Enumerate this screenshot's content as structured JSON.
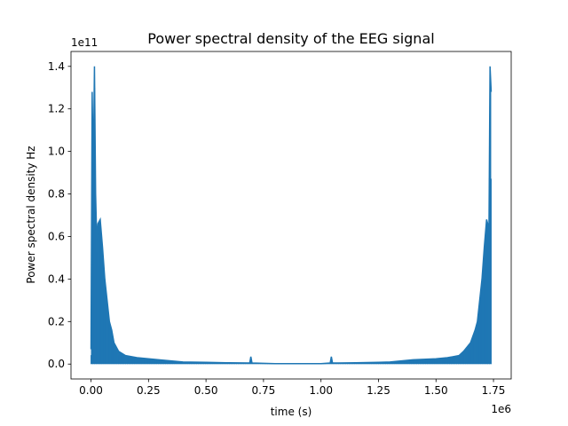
{
  "chart_data": {
    "type": "line",
    "title": "Power spectral density of the EEG signal",
    "xlabel": "time (s)",
    "ylabel": "Power spectral density Hz",
    "x_offset_text": "1e6",
    "y_offset_text": "1e11",
    "xlim": [
      -0.087,
      1.827
    ],
    "ylim": [
      -0.07,
      1.47
    ],
    "x_ticks": [
      0.0,
      0.25,
      0.5,
      0.75,
      1.0,
      1.25,
      1.5,
      1.75
    ],
    "x_tick_labels": [
      "0.00",
      "0.25",
      "0.50",
      "0.75",
      "1.00",
      "1.25",
      "1.50",
      "1.75"
    ],
    "y_ticks": [
      0.0,
      0.2,
      0.4,
      0.6,
      0.8,
      1.0,
      1.2,
      1.4
    ],
    "y_tick_labels": [
      "0.0",
      "0.2",
      "0.4",
      "0.6",
      "0.8",
      "1.0",
      "1.2",
      "1.4"
    ],
    "grid": false,
    "legend": "none",
    "series": [
      {
        "color": "#1f77b4",
        "envelope_x": [
          0.0,
          0.005,
          0.01,
          0.015,
          0.02,
          0.025,
          0.03,
          0.04,
          0.05,
          0.06,
          0.07,
          0.08,
          0.09,
          0.1,
          0.12,
          0.15,
          0.2,
          0.25,
          0.3,
          0.4,
          0.5,
          0.6,
          0.69,
          0.695,
          0.7,
          0.8,
          0.9,
          1.0,
          1.04,
          1.045,
          1.05,
          1.15,
          1.25,
          1.3,
          1.4,
          1.5,
          1.55,
          1.6,
          1.62,
          1.65,
          1.67,
          1.68,
          1.69,
          1.7,
          1.71,
          1.72,
          1.725,
          1.73,
          1.735,
          1.74
        ],
        "envelope_y": [
          0.07,
          1.28,
          0.9,
          1.4,
          0.8,
          0.58,
          0.66,
          0.68,
          0.55,
          0.4,
          0.3,
          0.2,
          0.16,
          0.1,
          0.06,
          0.04,
          0.03,
          0.025,
          0.02,
          0.01,
          0.008,
          0.006,
          0.005,
          0.035,
          0.005,
          0.002,
          0.002,
          0.002,
          0.005,
          0.035,
          0.005,
          0.006,
          0.008,
          0.01,
          0.02,
          0.025,
          0.03,
          0.04,
          0.06,
          0.1,
          0.16,
          0.2,
          0.3,
          0.4,
          0.55,
          0.68,
          0.66,
          0.58,
          1.4,
          1.28
        ]
      }
    ]
  }
}
